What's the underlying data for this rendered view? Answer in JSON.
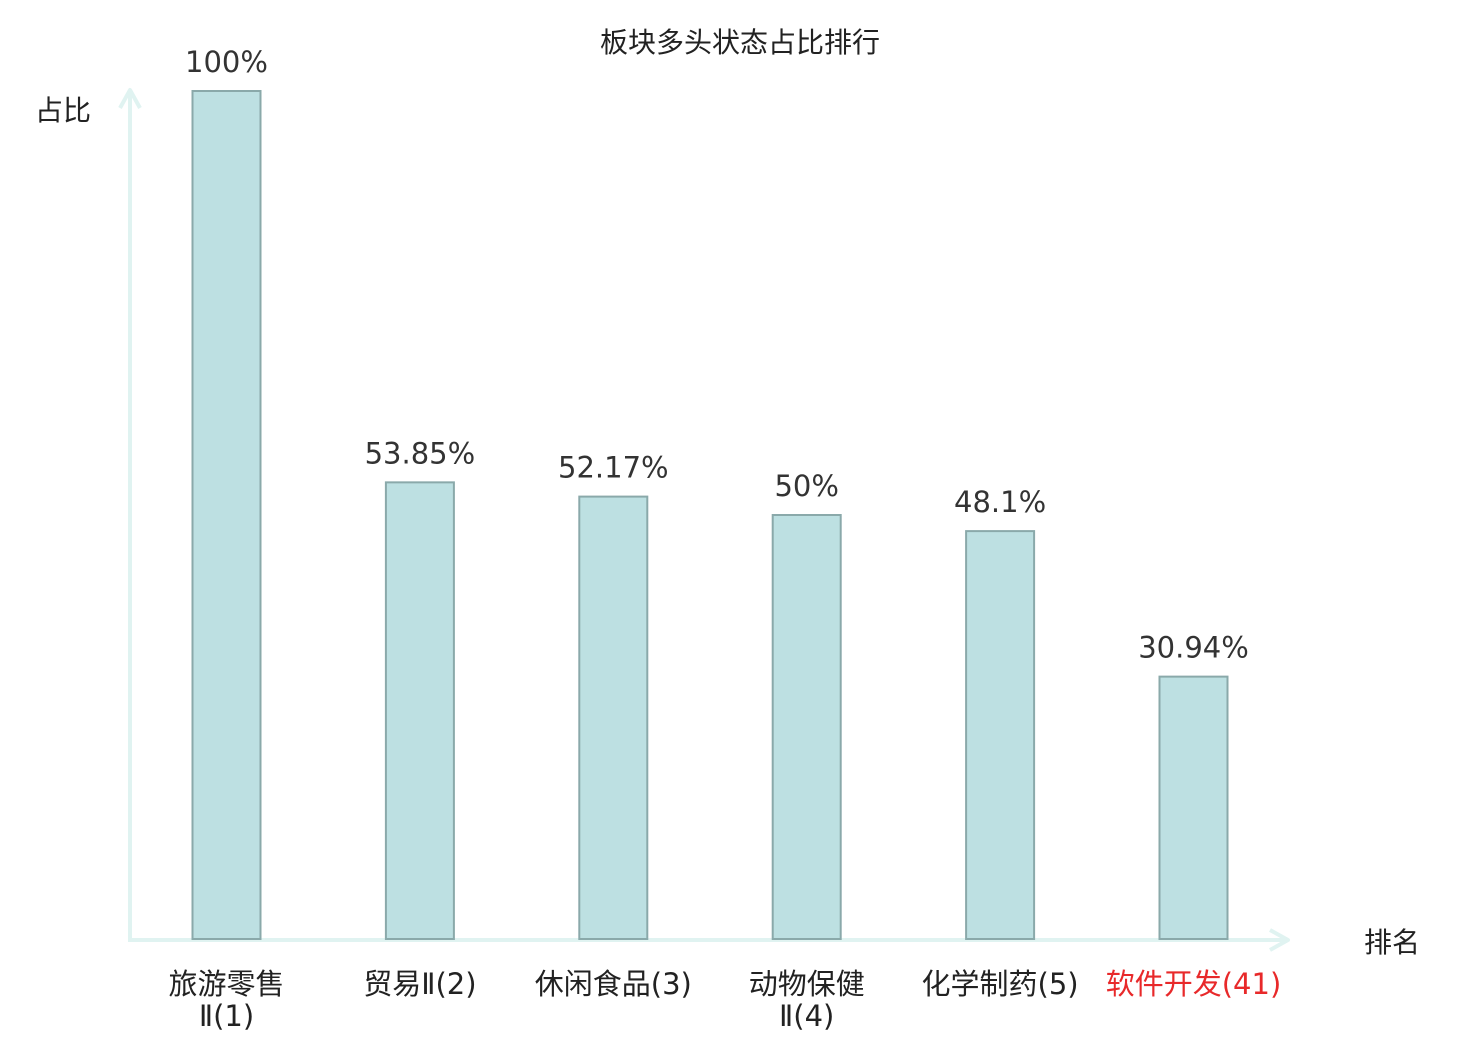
{
  "chart_data": {
    "type": "bar",
    "title": "板块多头状态占比排行",
    "ylabel": "占比",
    "xlabel": "排名",
    "ylim": [
      0,
      100
    ],
    "grid": false,
    "legend": "none",
    "categories": [
      {
        "lines": [
          "旅游零售",
          "Ⅱ(1)"
        ],
        "highlight": false
      },
      {
        "lines": [
          "贸易Ⅱ(2)"
        ],
        "highlight": false
      },
      {
        "lines": [
          "休闲食品(3)"
        ],
        "highlight": false
      },
      {
        "lines": [
          "动物保健",
          "Ⅱ(4)"
        ],
        "highlight": false
      },
      {
        "lines": [
          "化学制药(5)"
        ],
        "highlight": false
      },
      {
        "lines": [
          "软件开发(41)"
        ],
        "highlight": true
      }
    ],
    "values": [
      100,
      53.85,
      52.17,
      50,
      48.1,
      30.94
    ],
    "value_labels": [
      "100%",
      "53.85%",
      "52.17%",
      "50%",
      "48.1%",
      "30.94%"
    ],
    "colors": {
      "bar_fill": "#bde0e2",
      "bar_stroke": "#8aa9aa",
      "axis": "#e0f3f1",
      "text": "#222222",
      "value_text": "#333333",
      "highlight": "#e8292a"
    }
  }
}
